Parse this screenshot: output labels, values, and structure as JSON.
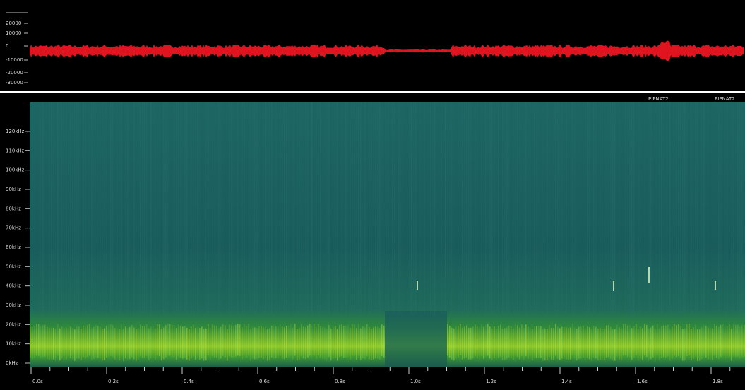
{
  "waveform": {
    "amplitude_labels": [
      "20000",
      "10000",
      "0",
      "-10000",
      "-20000",
      "-30000"
    ]
  },
  "spectrogram": {
    "species_labels": [
      "PIPNAT2",
      "PIPNAT2"
    ],
    "frequency_labels": [
      "120kHz",
      "110kHz",
      "100kHz",
      "90kHz",
      "80kHz",
      "70kHz",
      "60kHz",
      "50kHz",
      "40kHz",
      "30kHz",
      "20kHz",
      "10kHz",
      "0kHz"
    ],
    "time_labels": [
      "0.0s",
      "0.2s",
      "0.4s",
      "0.6s",
      "0.8s",
      "1.0s",
      "1.2s",
      "1.4s",
      "1.6s",
      "1.8s"
    ]
  }
}
